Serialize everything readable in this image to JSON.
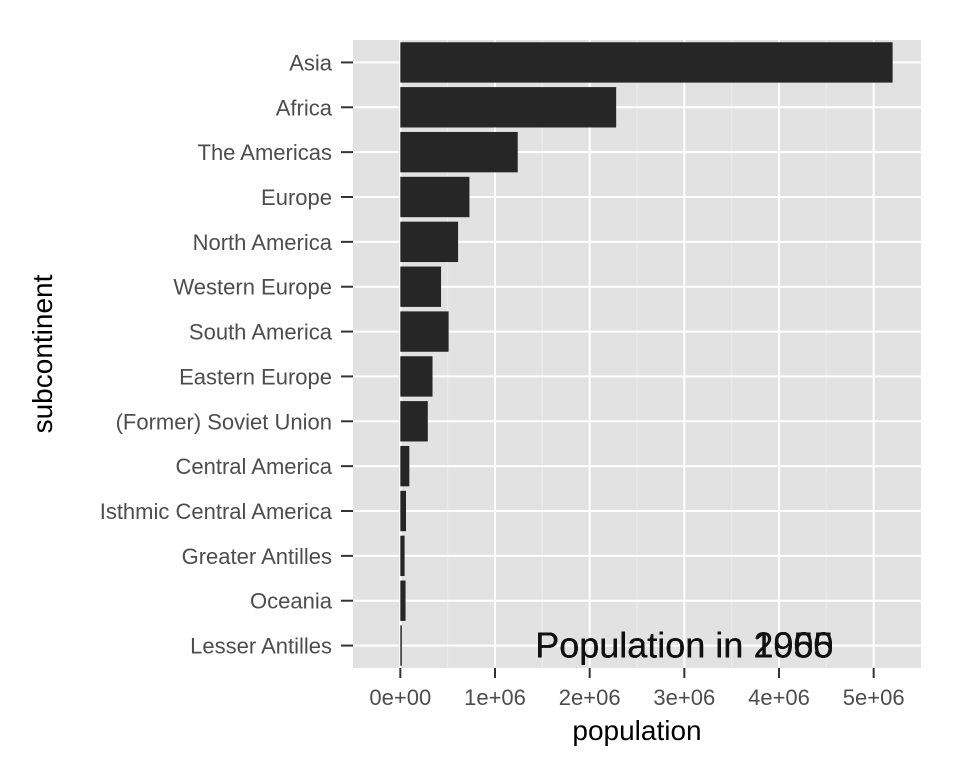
{
  "chart_data": {
    "type": "bar",
    "orientation": "horizontal",
    "categories": [
      "Asia",
      "Africa",
      "The Americas",
      "Europe",
      "North America",
      "Western Europe",
      "South America",
      "Eastern Europe",
      "(Former) Soviet Union",
      "Central America",
      "Isthmic Central America",
      "Greater Antilles",
      "Oceania",
      "Lesser Antilles"
    ],
    "values": [
      5200000,
      2280000,
      1240000,
      730000,
      610000,
      430000,
      510000,
      340000,
      290000,
      95000,
      60000,
      45000,
      55000,
      15000
    ],
    "xlabel": "population",
    "ylabel": "subcontinent",
    "xlim": [
      -500000,
      5500000
    ],
    "x_ticks": [
      0,
      1000000,
      2000000,
      3000000,
      4000000,
      5000000
    ],
    "x_tick_labels": [
      "0e+00",
      "1e+06",
      "2e+06",
      "3e+06",
      "4e+06",
      "5e+06"
    ],
    "grid": true,
    "legend": "none",
    "annotation_labels": [
      "Population in 1950",
      "Population in 1955",
      "Population in 1960",
      "Population in 1965",
      "Population in 2005"
    ],
    "annotation_x": 3000000,
    "annotation_y": "Lesser Antilles"
  },
  "colors": {
    "bar": "#262626",
    "panel": "#e2e2e2",
    "grid_major": "#ffffff",
    "grid_minor": "#ececec",
    "tick_text": "#4d4d4d",
    "axis_title": "#000000",
    "annotation": "#111111"
  }
}
